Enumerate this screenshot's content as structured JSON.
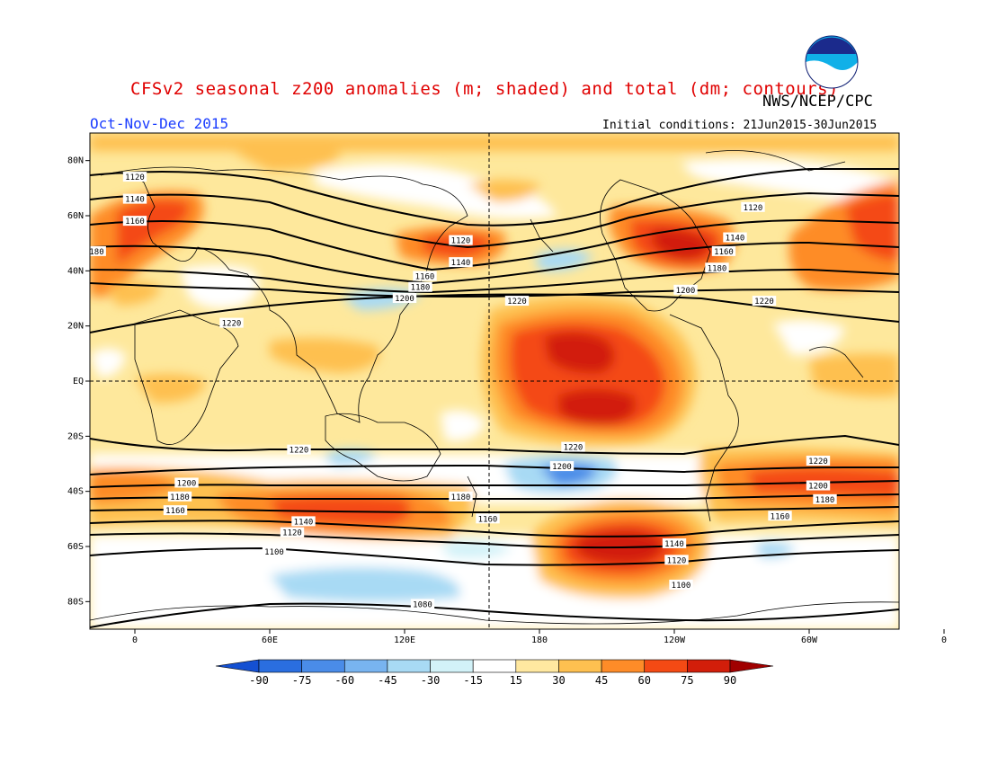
{
  "header": {
    "title": "CFSv2 seasonal z200 anomalies (m; shaded) and total (dm; contours)",
    "org": "NWS/NCEP/CPC",
    "season": "Oct-Nov-Dec 2015",
    "initial_conditions": "Initial conditions: 21Jun2015-30Jun2015",
    "logo_text": "NOAA"
  },
  "map": {
    "projection": "cylindrical equidistant",
    "lon_range": [
      -20,
      340
    ],
    "lat_range": [
      -90,
      90
    ],
    "lat_ticks": [
      "80N",
      "60N",
      "40N",
      "20N",
      "EQ",
      "20S",
      "40S",
      "60S",
      "80S"
    ],
    "lon_ticks": [
      "0",
      "60E",
      "120E",
      "180",
      "120W",
      "60W",
      "0"
    ],
    "reference_lines": [
      "equator",
      "dateline"
    ]
  },
  "colorbar": {
    "tick_labels": [
      "-90",
      "-75",
      "-60",
      "-45",
      "-30",
      "-15",
      "15",
      "30",
      "45",
      "60",
      "75",
      "90"
    ],
    "colors": [
      "#1450d2",
      "#2a6ee0",
      "#4a8ce8",
      "#78b4f0",
      "#a8daf4",
      "#d2f2f8",
      "#ffffff",
      "#ffe8a0",
      "#fec050",
      "#fe8c28",
      "#f44a14",
      "#d21e0a",
      "#a00000"
    ]
  },
  "contour_labels": [
    {
      "text": "1120",
      "lon": 0,
      "lat": 74
    },
    {
      "text": "1140",
      "lon": 0,
      "lat": 66
    },
    {
      "text": "1160",
      "lon": 0,
      "lat": 58
    },
    {
      "text": "180",
      "lon": -17,
      "lat": 47
    },
    {
      "text": "1120",
      "lon": 145,
      "lat": 51
    },
    {
      "text": "1140",
      "lon": 145,
      "lat": 43
    },
    {
      "text": "1160",
      "lon": 129,
      "lat": 38
    },
    {
      "text": "1180",
      "lon": 127,
      "lat": 34
    },
    {
      "text": "1200",
      "lon": 120,
      "lat": 30
    },
    {
      "text": "1220",
      "lon": 170,
      "lat": 29
    },
    {
      "text": "1220",
      "lon": 43,
      "lat": 21
    },
    {
      "text": "1120",
      "lon": 275,
      "lat": 63
    },
    {
      "text": "1140",
      "lon": 267,
      "lat": 52
    },
    {
      "text": "1160",
      "lon": 262,
      "lat": 47
    },
    {
      "text": "1180",
      "lon": 259,
      "lat": 41
    },
    {
      "text": "1200",
      "lon": 245,
      "lat": 33
    },
    {
      "text": "1220",
      "lon": 280,
      "lat": 29
    },
    {
      "text": "1220",
      "lon": 73,
      "lat": -25
    },
    {
      "text": "1220",
      "lon": 195,
      "lat": -24
    },
    {
      "text": "1200",
      "lon": 190,
      "lat": -31
    },
    {
      "text": "1200",
      "lon": 23,
      "lat": -37
    },
    {
      "text": "1180",
      "lon": 20,
      "lat": -42
    },
    {
      "text": "1160",
      "lon": 18,
      "lat": -47
    },
    {
      "text": "1180",
      "lon": 145,
      "lat": -42
    },
    {
      "text": "1160",
      "lon": 157,
      "lat": -50
    },
    {
      "text": "1140",
      "lon": 75,
      "lat": -51
    },
    {
      "text": "1120",
      "lon": 70,
      "lat": -55
    },
    {
      "text": "1100",
      "lon": 62,
      "lat": -62
    },
    {
      "text": "1080",
      "lon": 128,
      "lat": -81
    },
    {
      "text": "1140",
      "lon": 240,
      "lat": -59
    },
    {
      "text": "1120",
      "lon": 241,
      "lat": -65
    },
    {
      "text": "1100",
      "lon": 243,
      "lat": -74
    },
    {
      "text": "1160",
      "lon": 287,
      "lat": -49
    },
    {
      "text": "1180",
      "lon": 307,
      "lat": -43
    },
    {
      "text": "1200",
      "lon": 304,
      "lat": -38
    },
    {
      "text": "1220",
      "lon": 304,
      "lat": -29
    }
  ]
}
